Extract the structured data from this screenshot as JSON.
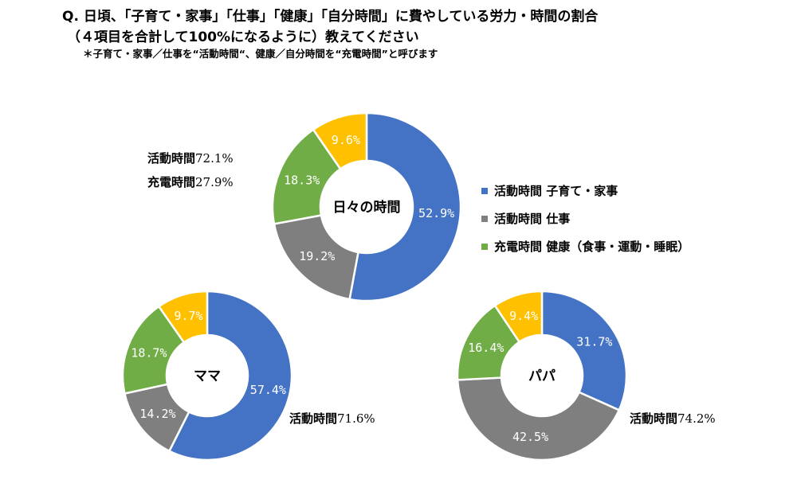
{
  "question": {
    "line1": "Q. 日頃、「子育て・家事」「仕事」「健康」「自分時間」に費やしている労力・時間の割合",
    "line2": "（４項目を合計して100%になるように）教えてください",
    "note": "＊子育て・家事／仕事を“活動時間“、健康／自分時間を“充電時間”と呼びます"
  },
  "legend": [
    {
      "label": "活動時間  子育て・家事",
      "color": "#4472C4"
    },
    {
      "label": "活動時間  仕事",
      "color": "#7F7F7F"
    },
    {
      "label": "充電時間  健康（食事・運動・睡眠）",
      "color": "#70AD47"
    }
  ],
  "summary_main": {
    "activity_label": "活動時間",
    "activity_value": "72.1%",
    "charge_label": "充電時間",
    "charge_value": "27.9%"
  },
  "summary_mama": {
    "label": "活動時間",
    "value": "71.6%"
  },
  "summary_papa": {
    "label": "活動時間",
    "value": "74.2%"
  },
  "colors": [
    "#4472C4",
    "#7F7F7F",
    "#70AD47",
    "#FFC000"
  ],
  "chart_data": [
    {
      "type": "pie",
      "center_label": "日々の時間",
      "values": [
        52.9,
        19.2,
        18.3,
        9.6
      ],
      "labels": [
        "52.9%",
        "19.2%",
        "18.3%",
        "9.6%"
      ]
    },
    {
      "type": "pie",
      "center_label": "ママ",
      "values": [
        57.4,
        14.2,
        18.7,
        9.7
      ],
      "labels": [
        "57.4%",
        "14.2%",
        "18.7%",
        "9.7%"
      ]
    },
    {
      "type": "pie",
      "center_label": "パパ",
      "values": [
        31.7,
        42.5,
        16.4,
        9.4
      ],
      "labels": [
        "31.7%",
        "42.5%",
        "16.4%",
        "9.4%"
      ]
    }
  ]
}
